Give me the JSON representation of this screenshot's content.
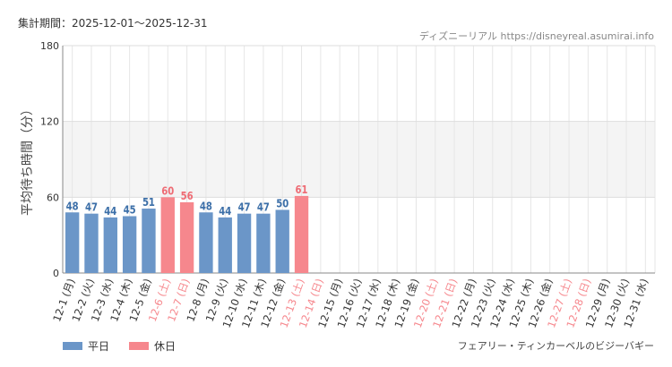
{
  "header": {
    "period": "集計期間：2025-12-01～2025-12-31",
    "credit": "ディズニーリアル https://disneyreal.asumirai.info"
  },
  "footer": {
    "attraction": "フェアリー・ティンカーベルのビジーバギー"
  },
  "legend": [
    {
      "label": "平日",
      "color": "#6b96c8"
    },
    {
      "label": "休日",
      "color": "#f6878d"
    }
  ],
  "chart_data": {
    "type": "bar",
    "ylabel": "平均待ち時間（分）",
    "ylim": [
      0,
      180
    ],
    "yticks": [
      0,
      60,
      120,
      180
    ],
    "grid": true,
    "shaded_band": [
      60,
      120
    ],
    "colors": {
      "weekday": "#6b96c8",
      "holiday": "#f6878d",
      "weekday_label": "#3c6fa8",
      "holiday_label": "#ee6b74"
    },
    "categories": [
      "12-1 (月)",
      "12-2 (火)",
      "12-3 (水)",
      "12-4 (木)",
      "12-5 (金)",
      "12-6 (土)",
      "12-7 (日)",
      "12-8 (月)",
      "12-9 (火)",
      "12-10 (水)",
      "12-11 (木)",
      "12-12 (金)",
      "12-13 (土)",
      "12-14 (日)",
      "12-15 (月)",
      "12-16 (火)",
      "12-17 (水)",
      "12-18 (木)",
      "12-19 (金)",
      "12-20 (土)",
      "12-21 (日)",
      "12-22 (月)",
      "12-23 (火)",
      "12-24 (水)",
      "12-25 (木)",
      "12-26 (金)",
      "12-27 (土)",
      "12-28 (日)",
      "12-29 (月)",
      "12-30 (火)",
      "12-31 (水)"
    ],
    "holiday": [
      false,
      false,
      false,
      false,
      false,
      true,
      true,
      false,
      false,
      false,
      false,
      false,
      true,
      true,
      false,
      false,
      false,
      false,
      false,
      true,
      true,
      false,
      false,
      false,
      false,
      false,
      true,
      true,
      false,
      false,
      false
    ],
    "values": [
      48,
      47,
      44,
      45,
      51,
      60,
      56,
      48,
      44,
      47,
      47,
      50,
      61,
      null,
      null,
      null,
      null,
      null,
      null,
      null,
      null,
      null,
      null,
      null,
      null,
      null,
      null,
      null,
      null,
      null,
      null
    ]
  }
}
